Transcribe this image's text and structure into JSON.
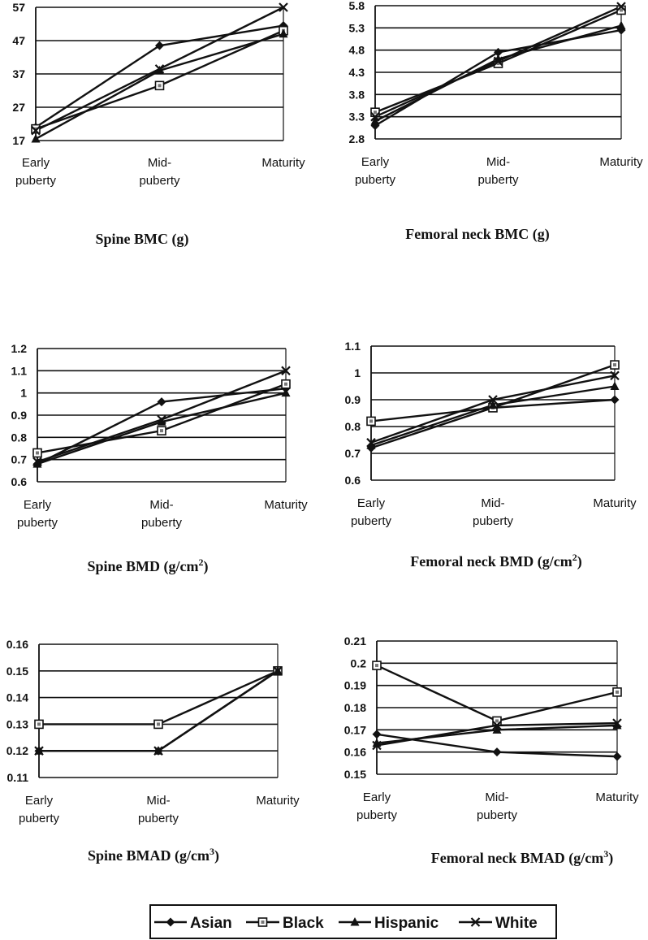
{
  "colors": {
    "ink": "#111111",
    "background": "#ffffff"
  },
  "legend": {
    "items": [
      {
        "name": "Asian",
        "marker": "diamond"
      },
      {
        "name": "Black",
        "marker": "open-square"
      },
      {
        "name": "Hispanic",
        "marker": "triangle"
      },
      {
        "name": "White",
        "marker": "x"
      }
    ]
  },
  "chart_data": [
    {
      "type": "line",
      "title": "Spine BMC (g)",
      "categories": [
        [
          "Early",
          "puberty"
        ],
        [
          "Mid-",
          "puberty"
        ],
        [
          "Maturity"
        ]
      ],
      "ylim": [
        17,
        57
      ],
      "yticks": [
        "17",
        "27",
        "37",
        "47",
        "57"
      ],
      "grid": true,
      "series": [
        {
          "name": "Asian",
          "values": [
            21.0,
            45.5,
            51.5
          ]
        },
        {
          "name": "Black",
          "values": [
            20.5,
            33.5,
            50.0
          ]
        },
        {
          "name": "Hispanic",
          "values": [
            17.5,
            38.0,
            49.0
          ]
        },
        {
          "name": "White",
          "values": [
            20.0,
            38.5,
            57.0
          ]
        }
      ]
    },
    {
      "type": "line",
      "title": "Femoral neck BMC (g)",
      "categories": [
        [
          "Early",
          "puberty"
        ],
        [
          "Mid-",
          "puberty"
        ],
        [
          "Maturity"
        ]
      ],
      "ylim": [
        2.8,
        5.8
      ],
      "yticks": [
        "2.8",
        "3.3",
        "3.8",
        "4.3",
        "4.8",
        "5.3",
        "5.8"
      ],
      "grid": true,
      "series": [
        {
          "name": "Asian",
          "values": [
            3.1,
            4.75,
            5.25
          ]
        },
        {
          "name": "Black",
          "values": [
            3.4,
            4.5,
            5.7
          ]
        },
        {
          "name": "Hispanic",
          "values": [
            3.2,
            4.6,
            5.35
          ]
        },
        {
          "name": "White",
          "values": [
            3.3,
            4.55,
            5.78
          ]
        }
      ]
    },
    {
      "type": "line",
      "title": "Spine BMD (g/cm²)",
      "categories": [
        [
          "Early",
          "puberty"
        ],
        [
          "Mid-",
          "puberty"
        ],
        [
          "Maturity"
        ]
      ],
      "ylim": [
        0.6,
        1.2
      ],
      "yticks": [
        "0.6",
        "0.7",
        "0.8",
        "0.9",
        "1",
        "1.1",
        "1.2"
      ],
      "grid": true,
      "series": [
        {
          "name": "Asian",
          "values": [
            0.68,
            0.96,
            1.02
          ]
        },
        {
          "name": "Black",
          "values": [
            0.73,
            0.83,
            1.04
          ]
        },
        {
          "name": "Hispanic",
          "values": [
            0.68,
            0.87,
            1.0
          ]
        },
        {
          "name": "White",
          "values": [
            0.69,
            0.88,
            1.1
          ]
        }
      ]
    },
    {
      "type": "line",
      "title": "Femoral neck BMD (g/cm²)",
      "categories": [
        [
          "Early",
          "puberty"
        ],
        [
          "Mid-",
          "puberty"
        ],
        [
          "Maturity"
        ]
      ],
      "ylim": [
        0.6,
        1.1
      ],
      "yticks": [
        "0.6",
        "0.7",
        "0.8",
        "0.9",
        "1",
        "1.1"
      ],
      "grid": true,
      "series": [
        {
          "name": "Asian",
          "values": [
            0.72,
            0.87,
            0.9
          ]
        },
        {
          "name": "Black",
          "values": [
            0.82,
            0.87,
            1.03
          ]
        },
        {
          "name": "Hispanic",
          "values": [
            0.73,
            0.88,
            0.95
          ]
        },
        {
          "name": "White",
          "values": [
            0.74,
            0.9,
            0.99
          ]
        }
      ]
    },
    {
      "type": "line",
      "title": "Spine BMAD (g/cm³)",
      "categories": [
        [
          "Early",
          "puberty"
        ],
        [
          "Mid-",
          "puberty"
        ],
        [
          "Maturity"
        ]
      ],
      "ylim": [
        0.11,
        0.16
      ],
      "yticks": [
        "0.11",
        "0.12",
        "0.13",
        "0.14",
        "0.15",
        "0.16"
      ],
      "grid": true,
      "series": [
        {
          "name": "Asian",
          "values": [
            0.12,
            0.12,
            0.15
          ]
        },
        {
          "name": "Black",
          "values": [
            0.13,
            0.13,
            0.15
          ]
        },
        {
          "name": "Hispanic",
          "values": [
            0.12,
            0.12,
            0.15
          ]
        },
        {
          "name": "White",
          "values": [
            0.12,
            0.12,
            0.15
          ]
        }
      ]
    },
    {
      "type": "line",
      "title": "Femoral neck BMAD (g/cm³)",
      "categories": [
        [
          "Early",
          "puberty"
        ],
        [
          "Mid-",
          "puberty"
        ],
        [
          "Maturity"
        ]
      ],
      "ylim": [
        0.15,
        0.21
      ],
      "yticks": [
        "0.15",
        "0.16",
        "0.17",
        "0.18",
        "0.19",
        "0.2",
        "0.21"
      ],
      "grid": true,
      "series": [
        {
          "name": "Asian",
          "values": [
            0.168,
            0.16,
            0.158
          ]
        },
        {
          "name": "Black",
          "values": [
            0.199,
            0.174,
            0.187
          ]
        },
        {
          "name": "Hispanic",
          "values": [
            0.164,
            0.17,
            0.172
          ]
        },
        {
          "name": "White",
          "values": [
            0.163,
            0.172,
            0.173
          ]
        }
      ]
    }
  ]
}
